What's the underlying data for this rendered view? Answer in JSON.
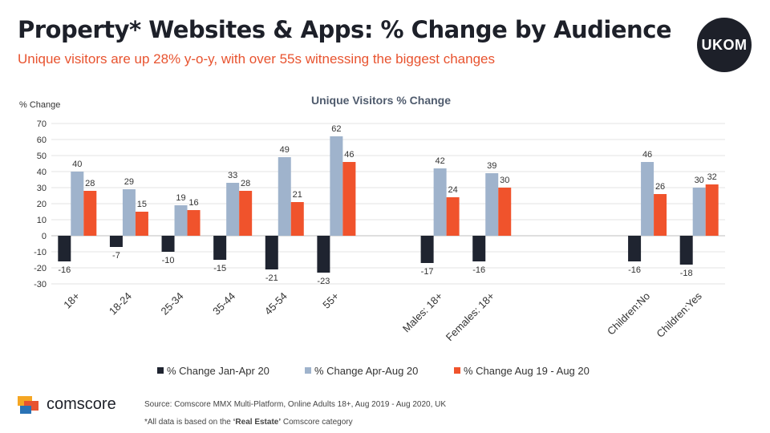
{
  "header": {
    "title": "Property* Websites & Apps: % Change by Audience",
    "subtitle": "Unique visitors are up 28% y-o-y, with over 55s witnessing the biggest changes",
    "logo_text": "UKOM"
  },
  "footer": {
    "brand": "comscore",
    "source": "Source: Comscore MMX Multi-Platform,  Online Adults 18+, Aug 2019 - Aug 2020, UK",
    "note_prefix": "*All data is based on the ",
    "note_bold": "‘Real Estate’",
    "note_suffix": " Comscore category"
  },
  "chart_data": {
    "type": "bar",
    "title": "Unique Visitors % Change",
    "ylabel": "% Change",
    "ylim": [
      -30,
      70
    ],
    "yticks": [
      -30,
      -20,
      -10,
      0,
      10,
      20,
      30,
      40,
      50,
      60,
      70
    ],
    "grid": true,
    "legend_position": "bottom",
    "categories": [
      "18+",
      "18-24",
      "25-34",
      "35-44",
      "45-54",
      "55+",
      "",
      "Males: 18+",
      "Females: 18+",
      "",
      "",
      "Children:No",
      "Children:Yes"
    ],
    "series": [
      {
        "name": "% Change Jan-Apr 20",
        "color": "#1f2430",
        "values": [
          -16,
          -7,
          -10,
          -15,
          -21,
          -23,
          null,
          -17,
          -16,
          null,
          null,
          -16,
          -18
        ]
      },
      {
        "name": "% Change Apr-Aug 20",
        "color": "#9fb3cc",
        "values": [
          40,
          29,
          19,
          33,
          49,
          62,
          null,
          42,
          39,
          null,
          null,
          46,
          30
        ]
      },
      {
        "name": "% Change Aug 19 - Aug 20",
        "color": "#f0532c",
        "values": [
          28,
          15,
          16,
          28,
          21,
          46,
          null,
          24,
          30,
          null,
          null,
          26,
          32
        ]
      }
    ]
  }
}
